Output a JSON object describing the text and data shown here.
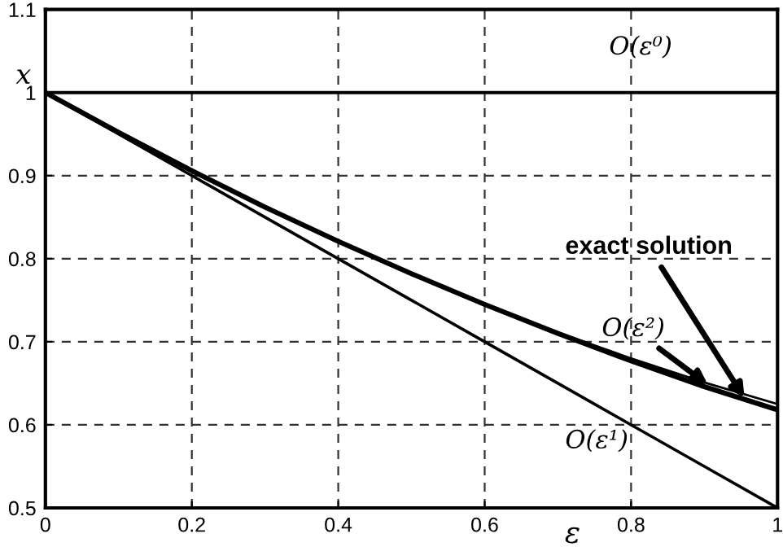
{
  "chart_data": {
    "type": "line",
    "xlabel": "ε",
    "ylabel": "x",
    "x": [
      0,
      0.1,
      0.2,
      0.3,
      0.4,
      0.5,
      0.6,
      0.7,
      0.8,
      0.9,
      1
    ],
    "series": [
      {
        "color": "#000000",
        "values": [
          1,
          1,
          1,
          1,
          1,
          1,
          1,
          1,
          1,
          1,
          1
        ]
      },
      {
        "color": "#000000",
        "values": [
          1,
          0.95,
          0.9,
          0.85,
          0.8,
          0.75,
          0.7,
          0.65,
          0.6,
          0.55,
          0.5
        ]
      },
      {
        "color": "#000000",
        "values": [
          1,
          0.951,
          0.905,
          0.861,
          0.82,
          0.781,
          0.745,
          0.711,
          0.68,
          0.651,
          0.625
        ]
      },
      {
        "color": "#000000",
        "values": [
          1,
          0.952,
          0.906,
          0.862,
          0.821,
          0.782,
          0.745,
          0.71,
          0.677,
          0.646,
          0.618
        ]
      }
    ],
    "annotations": [
      "O(ε⁰)",
      "O(ε¹)",
      {
        "text": "O(ε²)",
        "x": 0.905,
        "y": 0.648
      },
      {
        "text": "exact solution",
        "x": 0.955,
        "y": 0.632
      }
    ],
    "xlim": [
      0,
      1
    ],
    "ylim": [
      0.5,
      1.1
    ],
    "xticks": [
      0,
      0.2,
      0.4,
      0.6,
      0.8,
      1
    ],
    "yticks": [
      0.5,
      0.6,
      0.7,
      0.8,
      0.9,
      1,
      1.1
    ],
    "grid": true,
    "line_style": "solid",
    "marker": "none"
  }
}
